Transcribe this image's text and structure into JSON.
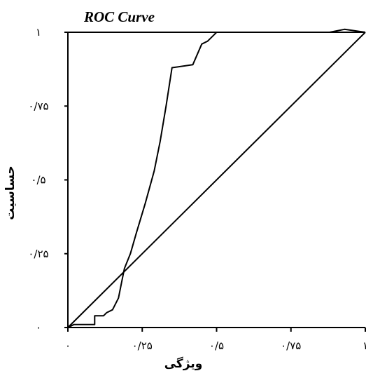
{
  "chart_data": {
    "type": "line",
    "title": "ROC Curve",
    "xlabel": "ویژگی",
    "ylabel": "حساسیت",
    "xlim": [
      0,
      1
    ],
    "ylim": [
      0,
      1
    ],
    "x_ticks": [
      {
        "value": 0,
        "label": "٠"
      },
      {
        "value": 0.25,
        "label": "٠/٢۵"
      },
      {
        "value": 0.5,
        "label": "٠/۵"
      },
      {
        "value": 0.75,
        "label": "٠/٧۵"
      },
      {
        "value": 1,
        "label": "١"
      }
    ],
    "y_ticks": [
      {
        "value": 0,
        "label": "٠"
      },
      {
        "value": 0.25,
        "label": "٠/٢۵"
      },
      {
        "value": 0.5,
        "label": "٠/۵"
      },
      {
        "value": 0.75,
        "label": "٠/٧۵"
      },
      {
        "value": 1,
        "label": "١"
      }
    ],
    "series": [
      {
        "points": [
          [
            0,
            0
          ],
          [
            0.02,
            0.01
          ],
          [
            0.09,
            0.01
          ],
          [
            0.09,
            0.04
          ],
          [
            0.12,
            0.04
          ],
          [
            0.13,
            0.05
          ],
          [
            0.15,
            0.06
          ],
          [
            0.17,
            0.1
          ],
          [
            0.18,
            0.15
          ],
          [
            0.19,
            0.2
          ],
          [
            0.21,
            0.25
          ],
          [
            0.23,
            0.32
          ],
          [
            0.26,
            0.42
          ],
          [
            0.29,
            0.53
          ],
          [
            0.31,
            0.63
          ],
          [
            0.33,
            0.75
          ],
          [
            0.35,
            0.88
          ],
          [
            0.42,
            0.89
          ],
          [
            0.45,
            0.96
          ],
          [
            0.47,
            0.97
          ],
          [
            0.49,
            0.99
          ],
          [
            0.5,
            1
          ],
          [
            0.88,
            1
          ],
          [
            0.93,
            1.01
          ],
          [
            1,
            1
          ]
        ]
      },
      {
        "points": [
          [
            0,
            0
          ],
          [
            1,
            1
          ]
        ]
      }
    ]
  }
}
